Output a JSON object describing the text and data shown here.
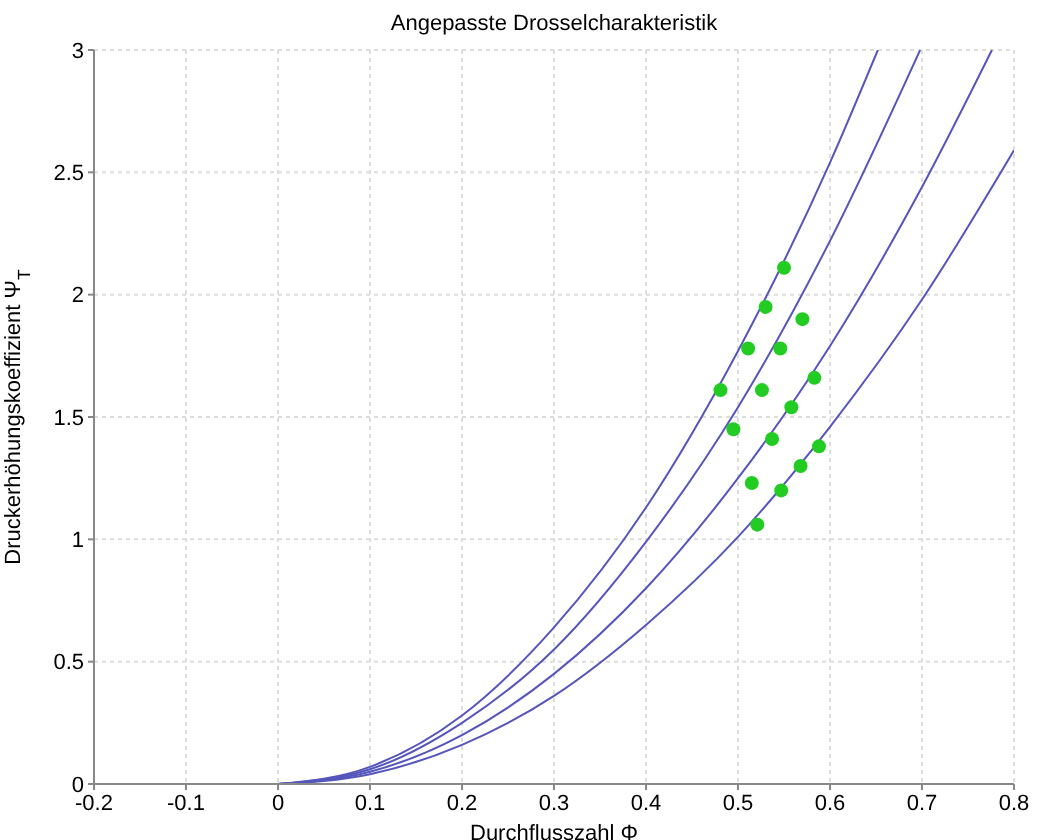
{
  "chart_data": {
    "type": "line",
    "title": "Angepasste Drosselcharakteristik",
    "xlabel": "Durchflusszahl Φ",
    "ylabel": "Druckerhöhungskoeffizient Ψ$_{T}$",
    "series": [
      {
        "color": "#5555bb",
        "x": [
          0,
          0.1,
          0.2,
          0.3,
          0.4,
          0.5,
          0.6,
          0.652
        ],
        "values": [
          0,
          0.07,
          0.28,
          0.64,
          1.13,
          1.77,
          2.54,
          3
        ]
      },
      {
        "color": "#5555bb",
        "x": [
          0,
          0.1,
          0.2,
          0.3,
          0.4,
          0.5,
          0.6,
          0.698
        ],
        "values": [
          0,
          0.06,
          0.25,
          0.55,
          0.99,
          1.54,
          2.22,
          3
        ]
      },
      {
        "color": "#5555bb",
        "x": [
          0,
          0.1,
          0.2,
          0.3,
          0.4,
          0.5,
          0.6,
          0.7,
          0.776
        ],
        "values": [
          0,
          0.05,
          0.2,
          0.45,
          0.8,
          1.25,
          1.79,
          2.44,
          3
        ]
      },
      {
        "color": "#5555bb",
        "x": [
          0,
          0.1,
          0.2,
          0.3,
          0.4,
          0.5,
          0.6,
          0.7,
          0.8
        ],
        "values": [
          0,
          0.04,
          0.16,
          0.36,
          0.65,
          1.01,
          1.46,
          1.98,
          2.59
        ]
      },
      {
        "type": "scatter",
        "color": "#22cc22",
        "marker": "circle",
        "x": [
          0.55,
          0.53,
          0.57,
          0.511,
          0.546,
          0.481,
          0.526,
          0.583,
          0.558,
          0.495,
          0.537,
          0.588,
          0.568,
          0.515,
          0.547,
          0.521
        ],
        "values": [
          2.11,
          1.95,
          1.9,
          1.78,
          1.78,
          1.61,
          1.61,
          1.66,
          1.54,
          1.45,
          1.41,
          1.38,
          1.3,
          1.23,
          1.2,
          1.06
        ]
      }
    ],
    "xlim": [
      -0.2,
      0.8
    ],
    "xticks": [
      -0.2,
      -0.1,
      0,
      0.1,
      0.2,
      0.3,
      0.4,
      0.5,
      0.6,
      0.7,
      0.8
    ],
    "ylim": [
      0,
      3
    ],
    "yticks": [
      0,
      0.5,
      1,
      1.5,
      2,
      2.5,
      3
    ],
    "grid": true
  }
}
